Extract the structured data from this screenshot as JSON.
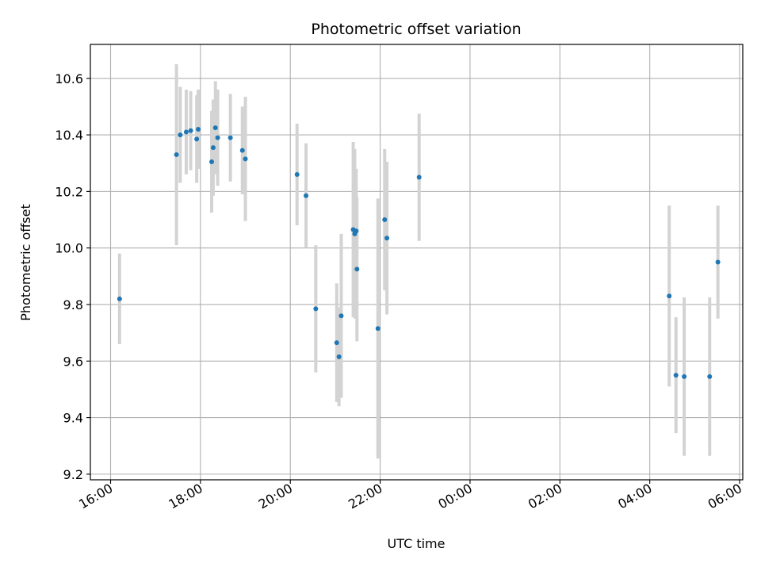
{
  "chart_data": {
    "type": "scatter",
    "title": "Photometric offset variation",
    "xlabel": "UTC time",
    "ylabel": "Photometric offset",
    "x_tick_labels": [
      "16:00",
      "18:00",
      "20:00",
      "22:00",
      "00:00",
      "02:00",
      "04:00",
      "06:00"
    ],
    "x_ticks_hours": [
      0,
      2,
      4,
      6,
      8,
      10,
      12,
      14
    ],
    "xlim_hours": [
      -0.45,
      14.07
    ],
    "y_ticks": [
      9.2,
      9.4,
      9.6,
      9.8,
      10.0,
      10.2,
      10.4,
      10.6
    ],
    "y_tick_labels": [
      "9.2",
      "9.4",
      "9.6",
      "9.8",
      "10.0",
      "10.2",
      "10.4",
      "10.6"
    ],
    "ylim": [
      9.18,
      10.72
    ],
    "grid": true,
    "x_origin": "16:00 UTC",
    "colors": {
      "points": "#1f77b4",
      "errorbars": "#d3d3d3",
      "grid": "#b0b0b0"
    },
    "points": [
      {
        "time": "16:12",
        "y": 9.82,
        "yerr": 0.16
      },
      {
        "time": "17:28",
        "y": 10.33,
        "yerr": 0.32
      },
      {
        "time": "17:33",
        "y": 10.4,
        "yerr": 0.17
      },
      {
        "time": "17:41",
        "y": 10.41,
        "yerr": 0.15
      },
      {
        "time": "17:47",
        "y": 10.415,
        "yerr": 0.14
      },
      {
        "time": "17:55",
        "y": 10.385,
        "yerr": 0.155
      },
      {
        "time": "17:57",
        "y": 10.42,
        "yerr": 0.14
      },
      {
        "time": "18:15",
        "y": 10.305,
        "yerr": 0.18
      },
      {
        "time": "18:17",
        "y": 10.355,
        "yerr": 0.17
      },
      {
        "time": "18:20",
        "y": 10.425,
        "yerr": 0.165
      },
      {
        "time": "18:23",
        "y": 10.39,
        "yerr": 0.17
      },
      {
        "time": "18:40",
        "y": 10.39,
        "yerr": 0.155
      },
      {
        "time": "18:56",
        "y": 10.345,
        "yerr": 0.155
      },
      {
        "time": "19:00",
        "y": 10.315,
        "yerr": 0.22
      },
      {
        "time": "20:09",
        "y": 10.26,
        "yerr": 0.18
      },
      {
        "time": "20:21",
        "y": 10.185,
        "yerr": 0.185
      },
      {
        "time": "20:34",
        "y": 9.785,
        "yerr": 0.225
      },
      {
        "time": "21:02",
        "y": 9.665,
        "yerr": 0.21
      },
      {
        "time": "21:05",
        "y": 9.615,
        "yerr": 0.175
      },
      {
        "time": "21:08",
        "y": 9.76,
        "yerr": 0.29
      },
      {
        "time": "21:24",
        "y": 10.065,
        "yerr": 0.31
      },
      {
        "time": "21:26",
        "y": 10.05,
        "yerr": 0.3
      },
      {
        "time": "21:28",
        "y": 10.06,
        "yerr": 0.22
      },
      {
        "time": "21:29",
        "y": 9.925,
        "yerr": 0.255
      },
      {
        "time": "21:57",
        "y": 9.715,
        "yerr": 0.46
      },
      {
        "time": "22:06",
        "y": 10.1,
        "yerr": 0.25
      },
      {
        "time": "22:09",
        "y": 10.035,
        "yerr": 0.27
      },
      {
        "time": "22:52",
        "y": 10.25,
        "yerr": 0.225
      },
      {
        "time": "04:26",
        "y": 9.83,
        "yerr": 0.32
      },
      {
        "time": "04:35",
        "y": 9.55,
        "yerr": 0.205
      },
      {
        "time": "04:46",
        "y": 9.545,
        "yerr": 0.28
      },
      {
        "time": "05:20",
        "y": 9.545,
        "yerr": 0.28
      },
      {
        "time": "05:31",
        "y": 9.95,
        "yerr": 0.2
      }
    ]
  }
}
